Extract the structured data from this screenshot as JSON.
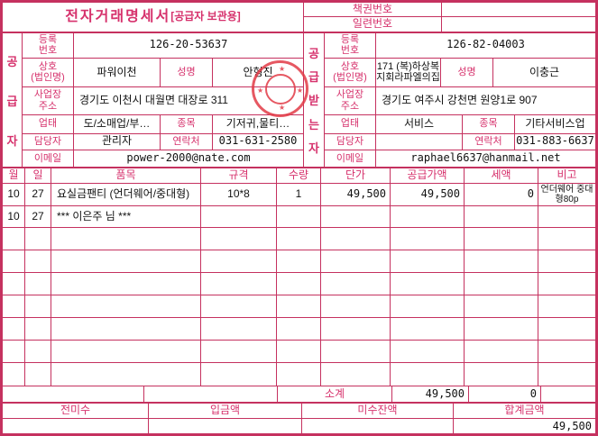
{
  "accent_color": "#c5315f",
  "label_color": "#d6316c",
  "value_color": "#111111",
  "stamp_color": "#e23b47",
  "header": {
    "title_main": "전자거래명세서",
    "title_sub": "[공급자 보관용]",
    "doc_numbers": [
      {
        "label": "책권번호",
        "value": ""
      },
      {
        "label": "일련번호",
        "value": ""
      }
    ]
  },
  "supplier": {
    "side_chars": [
      "공",
      "급",
      "자"
    ],
    "reg_label": "등록\n번호",
    "reg_value": "126-20-53637",
    "name_label": "상호\n(법인명)",
    "name_value": "파워이천",
    "ceo_label": "성명",
    "ceo_value": "안형진",
    "addr_label": "사업장\n주소",
    "addr_value": "경기도 이천시 대월면 대장로 311",
    "biztype_label": "업태",
    "biztype_value": "도/소매업/부…",
    "item_label": "종목",
    "item_value": "기저귀,물티…",
    "manager_label": "담당자",
    "manager_value": "관리자",
    "contact_label": "연락처",
    "contact_value": "031-631-2580",
    "email_label": "이메일",
    "email_value": "power-2000@nate.com"
  },
  "recipient": {
    "side_chars": [
      "공",
      "급",
      "받",
      "는",
      "자"
    ],
    "reg_label": "등록\n번호",
    "reg_value": "126-82-04003",
    "name_label": "상호\n(법인명)",
    "name_value": "171 (복)하상복\n지회라파엘의집",
    "ceo_label": "성명",
    "ceo_value": "이충근",
    "addr_label": "사업장\n주소",
    "addr_value": "경기도 여주시 강천면 원양1로 907",
    "biztype_label": "업태",
    "biztype_value": "서비스",
    "item_label": "종목",
    "item_value": "기타서비스업",
    "manager_label": "담당자",
    "manager_value": "",
    "contact_label": "연락처",
    "contact_value": "031-883-6637",
    "email_label": "이메일",
    "email_value": "raphael6637@hanmail.net"
  },
  "items_table": {
    "columns": {
      "month": "월",
      "day": "일",
      "name": "품목",
      "spec": "규격",
      "qty": "수량",
      "unit_price": "단가",
      "supply_amount": "공급가액",
      "tax": "세액",
      "note": "비고"
    },
    "rows": [
      {
        "month": "10",
        "day": "27",
        "name": "요실금팬티 (언더웨어/중대형)",
        "spec": "10*8",
        "qty": "1",
        "unit_price": "49,500",
        "supply_amount": "49,500",
        "tax": "0",
        "note": "언더웨어 중대형80p"
      },
      {
        "month": "10",
        "day": "27",
        "name": "*** 이은주 님 ***",
        "spec": "",
        "qty": "",
        "unit_price": "",
        "supply_amount": "",
        "tax": "",
        "note": ""
      }
    ],
    "empty_row_count": 7,
    "subtotal": {
      "label": "소계",
      "supply_amount": "49,500",
      "tax": "0"
    }
  },
  "footer": {
    "prev_balance_label": "전미수",
    "prev_balance_value": "",
    "deposit_label": "입금액",
    "deposit_value": "",
    "outstanding_label": "미수잔액",
    "outstanding_value": "",
    "total_label": "합계금액",
    "total_value": "49,500"
  },
  "icons": {
    "star": "★"
  }
}
